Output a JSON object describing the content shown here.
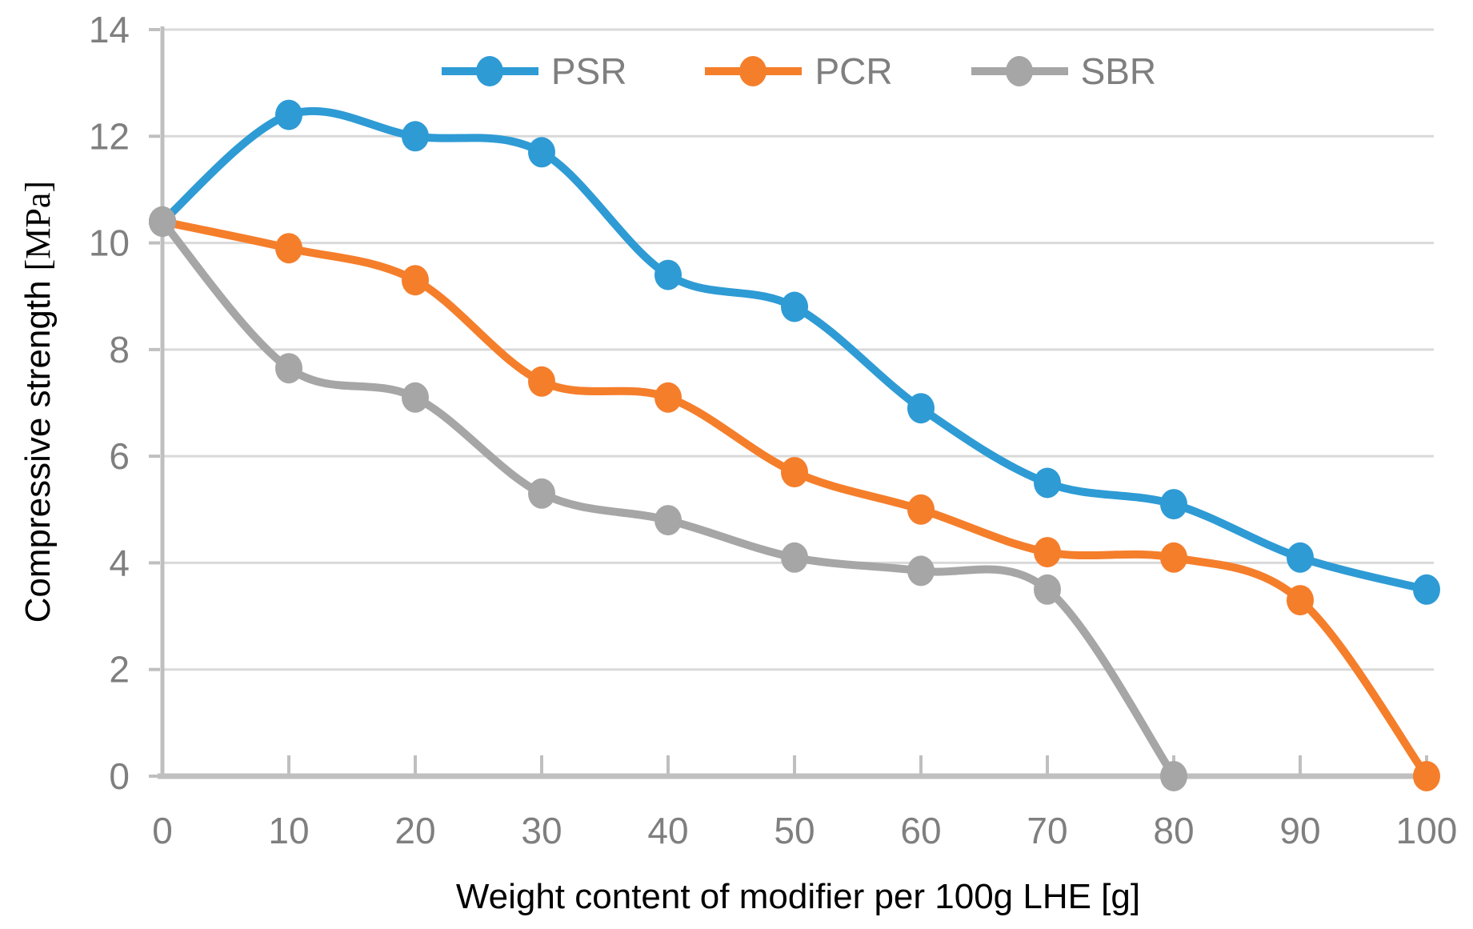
{
  "chart_data": {
    "type": "line",
    "smoothed": true,
    "marker": "circle",
    "x": [
      0,
      10,
      20,
      30,
      40,
      50,
      60,
      70,
      80,
      90,
      100
    ],
    "series": [
      {
        "name": "PSR",
        "color": "#2E9BD5",
        "values": [
          10.4,
          12.4,
          12.0,
          11.7,
          9.4,
          8.8,
          6.9,
          5.5,
          5.1,
          4.1,
          3.5
        ]
      },
      {
        "name": "PCR",
        "color": "#F57E2B",
        "values": [
          10.4,
          9.9,
          9.3,
          7.4,
          7.1,
          5.7,
          5.0,
          4.2,
          4.1,
          3.3,
          0
        ]
      },
      {
        "name": "SBR",
        "color": "#A6A6A6",
        "values": [
          10.4,
          7.65,
          7.1,
          5.3,
          4.8,
          4.1,
          3.85,
          3.5,
          0
        ]
      }
    ],
    "xlabel": "Weight content of modifier per 100g LHE [g]",
    "ylabel": "Compressive strength",
    "ylabel_unit": "[MPa]",
    "xlim": [
      0,
      100
    ],
    "ylim": [
      0,
      14
    ],
    "x_ticks": [
      0,
      10,
      20,
      30,
      40,
      50,
      60,
      70,
      80,
      90,
      100
    ],
    "y_ticks": [
      0,
      2,
      4,
      6,
      8,
      10,
      12,
      14
    ],
    "grid": "horizontal",
    "legend_position": "top"
  },
  "style": {
    "grid_color": "#D9D9D9",
    "axis_color": "#BFBFBF",
    "tick_label_color": "#7F7F7F",
    "legend_text_color": "#7F7F7F",
    "title_color": "#000000"
  }
}
